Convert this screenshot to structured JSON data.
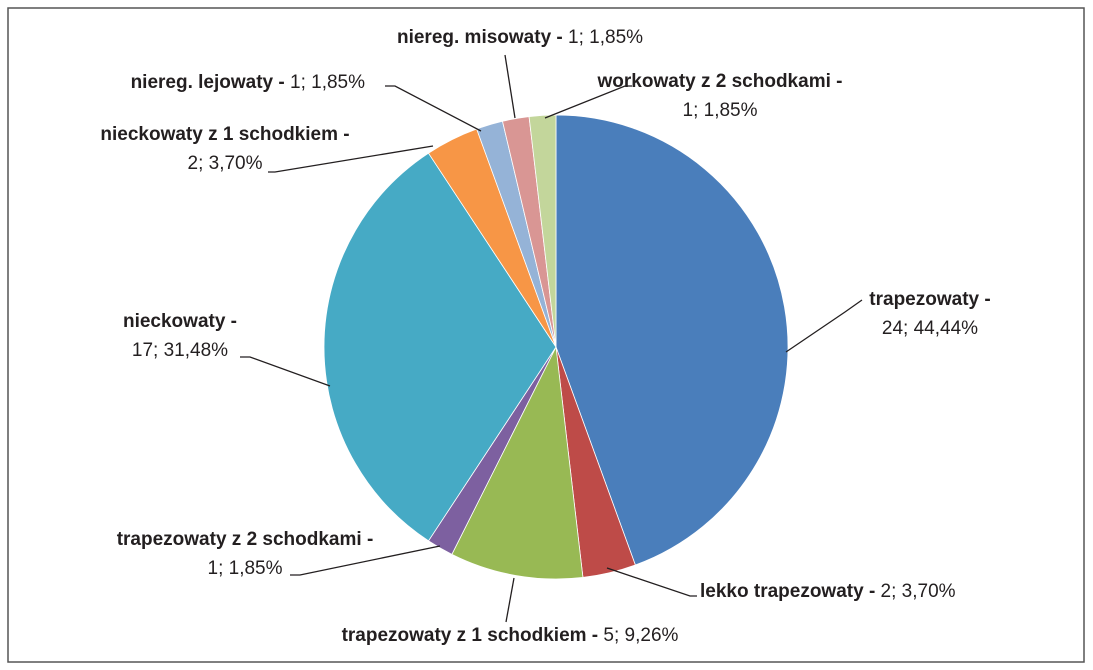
{
  "chart_data": {
    "type": "pie",
    "categories": [
      "trapezowaty -",
      "lekko trapezowaty -",
      "trapezowaty z 1 schodkiem -",
      "trapezowaty z 2 schodkami -",
      "nieckowaty -",
      "nieckowaty z 1 schodkiem -",
      "niereg. lejowaty -",
      "niereg. misowaty -",
      "workowaty z 2 schodkami -"
    ],
    "values": [
      24,
      2,
      5,
      1,
      17,
      2,
      1,
      1,
      1
    ],
    "value_labels": [
      "24; 44,44%",
      "2; 3,70%",
      "5; 9,26%",
      "1; 1,85%",
      "17; 31,48%",
      "2; 3,70%",
      "1; 1,85%",
      "1; 1,85%",
      "1; 1,85%"
    ],
    "colors": [
      "#4a7ebb",
      "#be4b48",
      "#98b954",
      "#7d60a0",
      "#46aac5",
      "#f79646",
      "#95b3d7",
      "#d99694",
      "#c3d69b"
    ]
  }
}
